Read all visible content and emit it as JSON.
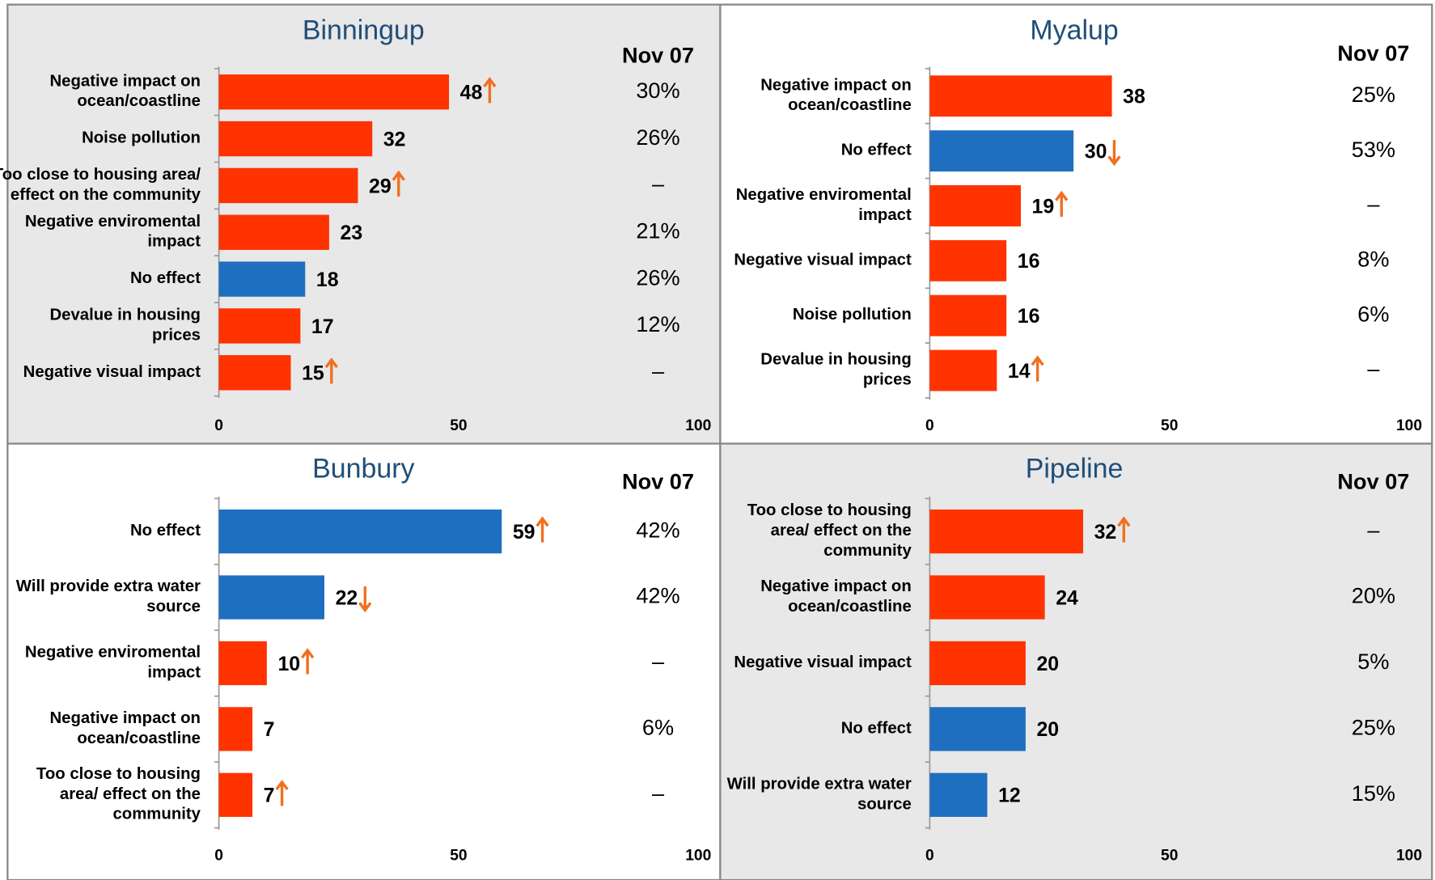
{
  "chart_data": [
    {
      "type": "bar",
      "title": "Binningup",
      "column_header": "Nov 07",
      "categories": [
        [
          "Negative impact on",
          "ocean/coastline"
        ],
        [
          "Noise pollution"
        ],
        [
          "Too close to housing area/",
          "effect on the community"
        ],
        [
          "Negative enviromental",
          "impact"
        ],
        [
          "No effect"
        ],
        [
          "Devalue in housing",
          "prices"
        ],
        [
          "Negative visual impact"
        ]
      ],
      "values": [
        48,
        32,
        29,
        23,
        18,
        17,
        15
      ],
      "colors": [
        "#ff3300",
        "#ff3300",
        "#ff3300",
        "#ff3300",
        "#1f6fc0",
        "#ff3300",
        "#ff3300"
      ],
      "trend": [
        "up",
        null,
        "up",
        null,
        null,
        null,
        "up"
      ],
      "column_values": [
        "30%",
        "26%",
        "–",
        "21%",
        "26%",
        "12%",
        "–"
      ],
      "xlim": [
        0,
        100
      ],
      "xticks": [
        0,
        50,
        100
      ],
      "background": "#e8e8e8"
    },
    {
      "type": "bar",
      "title": "Myalup",
      "column_header": "Nov 07",
      "categories": [
        [
          "Negative impact on",
          "ocean/coastline"
        ],
        [
          "No effect"
        ],
        [
          "Negative enviromental",
          "impact"
        ],
        [
          "Negative visual impact"
        ],
        [
          "Noise pollution"
        ],
        [
          "Devalue in housing",
          "prices"
        ]
      ],
      "values": [
        38,
        30,
        19,
        16,
        16,
        14
      ],
      "colors": [
        "#ff3300",
        "#1f6fc0",
        "#ff3300",
        "#ff3300",
        "#ff3300",
        "#ff3300"
      ],
      "trend": [
        null,
        "down",
        "up",
        null,
        null,
        "up"
      ],
      "column_values": [
        "25%",
        "53%",
        "–",
        "8%",
        "6%",
        "–"
      ],
      "xlim": [
        0,
        100
      ],
      "xticks": [
        0,
        50,
        100
      ],
      "background": "#ffffff"
    },
    {
      "type": "bar",
      "title": "Bunbury",
      "column_header": "Nov 07",
      "categories": [
        [
          "No effect"
        ],
        [
          "Will provide extra water",
          "source"
        ],
        [
          "Negative enviromental",
          "impact"
        ],
        [
          "Negative impact on",
          "ocean/coastline"
        ],
        [
          "Too close to housing",
          "area/ effect on the",
          "community"
        ]
      ],
      "values": [
        59,
        22,
        10,
        7,
        7
      ],
      "colors": [
        "#1f6fc0",
        "#1f6fc0",
        "#ff3300",
        "#ff3300",
        "#ff3300"
      ],
      "trend": [
        "up",
        "down",
        "up",
        null,
        "up"
      ],
      "column_values": [
        "42%",
        "42%",
        "–",
        "6%",
        "–"
      ],
      "xlim": [
        0,
        100
      ],
      "xticks": [
        0,
        50,
        100
      ],
      "background": "#ffffff"
    },
    {
      "type": "bar",
      "title": "Pipeline",
      "column_header": "Nov 07",
      "categories": [
        [
          "Too close to housing",
          "area/ effect on the",
          "community"
        ],
        [
          "Negative impact on",
          "ocean/coastline"
        ],
        [
          "Negative visual impact"
        ],
        [
          "No effect"
        ],
        [
          "Will provide extra water",
          "source"
        ]
      ],
      "values": [
        32,
        24,
        20,
        20,
        12
      ],
      "colors": [
        "#ff3300",
        "#ff3300",
        "#ff3300",
        "#1f6fc0",
        "#1f6fc0"
      ],
      "trend": [
        "up",
        null,
        null,
        null,
        null
      ],
      "column_values": [
        "–",
        "20%",
        "5%",
        "25%",
        "15%"
      ],
      "xlim": [
        0,
        100
      ],
      "xticks": [
        0,
        50,
        100
      ],
      "background": "#e8e8e8"
    }
  ]
}
